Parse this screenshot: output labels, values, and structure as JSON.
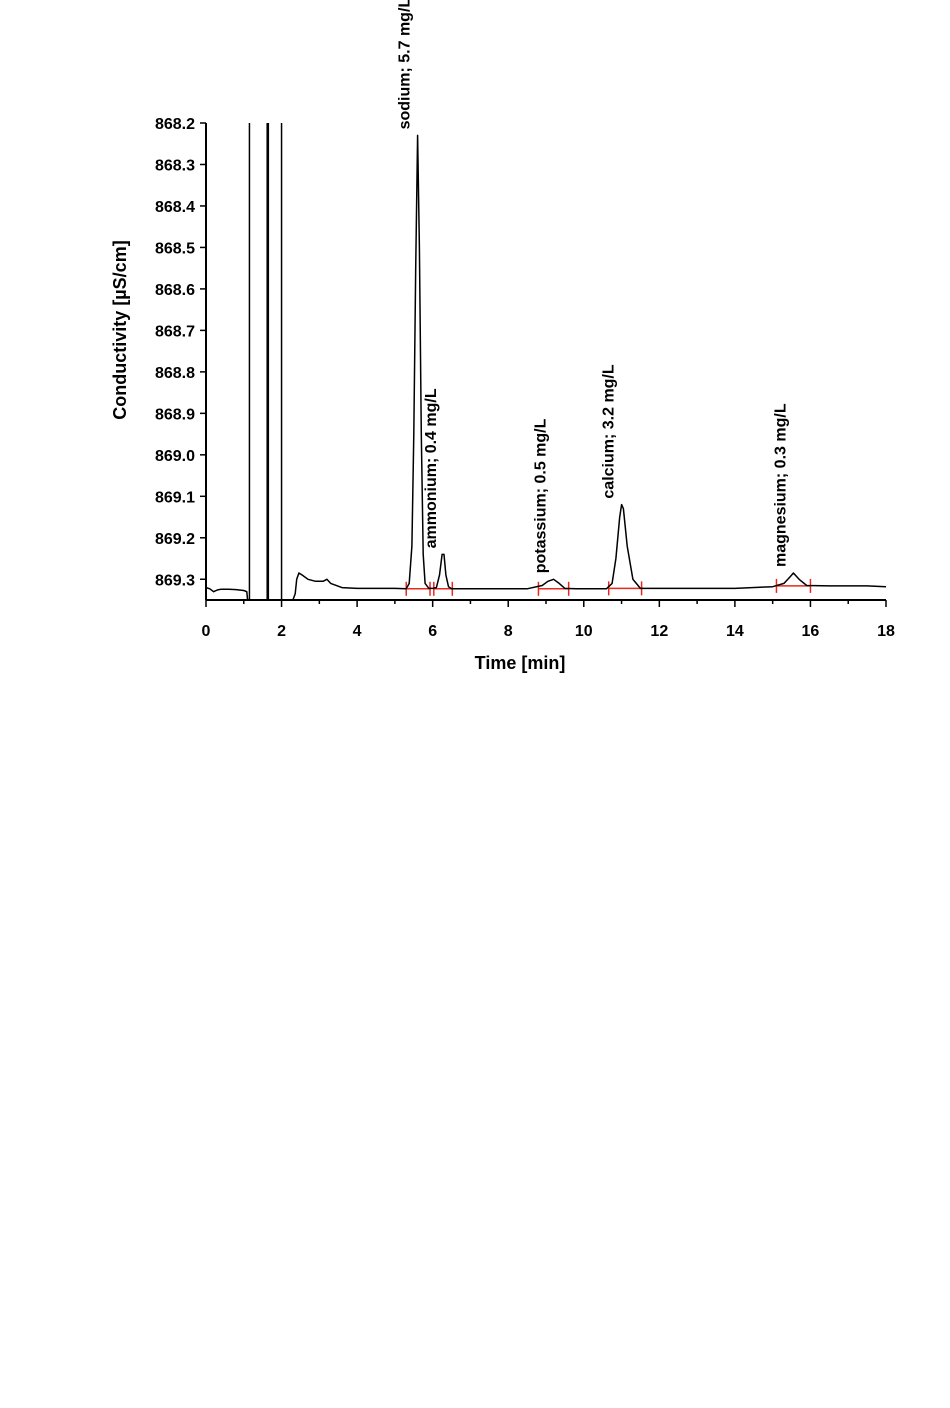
{
  "chart_data": {
    "type": "line",
    "xlabel": "Time [min]",
    "ylabel": "Conductivity [µS/cm]",
    "xlim": [
      0,
      18
    ],
    "ylim": [
      869.35,
      868.2
    ],
    "x_ticks": [
      "0",
      "2",
      "4",
      "6",
      "8",
      "10",
      "12",
      "14",
      "16",
      "18"
    ],
    "y_ticks": [
      "868.2",
      "868.3",
      "868.4",
      "868.5",
      "868.6",
      "868.7",
      "868.8",
      "868.9",
      "869.0",
      "869.1",
      "869.2",
      "869.3"
    ],
    "grid": false,
    "series": [
      {
        "x": [
          0,
          0.1,
          0.2,
          0.3,
          0.4,
          0.6,
          0.8,
          1.0,
          1.08,
          1.1,
          1.12,
          1.14,
          1.5,
          1.58,
          1.6,
          1.62,
          1.64,
          1.66,
          1.9,
          1.98,
          2.0,
          2.02,
          2.3,
          2.36,
          2.4,
          2.46,
          2.55,
          2.7,
          2.9,
          3.1,
          3.2,
          3.3,
          3.6,
          4.0,
          4.5,
          5.0,
          5.3,
          5.38,
          5.45,
          5.5,
          5.55,
          5.6,
          5.65,
          5.7,
          5.75,
          5.8,
          5.9,
          6.0,
          6.1,
          6.18,
          6.25,
          6.3,
          6.35,
          6.42,
          6.5,
          7.0,
          7.5,
          8.0,
          8.5,
          8.9,
          9.05,
          9.2,
          9.35,
          9.5,
          9.8,
          10.2,
          10.6,
          10.75,
          10.85,
          10.95,
          11.0,
          11.05,
          11.15,
          11.3,
          11.5,
          12.0,
          13.0,
          14.0,
          15.0,
          15.3,
          15.45,
          15.55,
          15.7,
          15.9,
          16.5,
          17.0,
          17.5,
          18.0
        ],
        "y": [
          869.32,
          869.323,
          869.33,
          869.326,
          869.324,
          869.324,
          869.325,
          869.327,
          869.33,
          869.35,
          869.35,
          869.35,
          869.35,
          869.35,
          869.35,
          869.35,
          869.35,
          869.35,
          869.35,
          869.35,
          869.35,
          869.35,
          869.35,
          869.335,
          869.3,
          869.285,
          869.29,
          869.3,
          869.305,
          869.305,
          869.3,
          869.31,
          869.32,
          869.322,
          869.322,
          869.322,
          869.323,
          869.31,
          869.22,
          868.95,
          868.55,
          868.23,
          868.5,
          868.95,
          869.24,
          869.31,
          869.322,
          869.322,
          869.32,
          869.29,
          869.24,
          869.24,
          869.29,
          869.318,
          869.323,
          869.323,
          869.323,
          869.323,
          869.323,
          869.315,
          869.305,
          869.3,
          869.31,
          869.322,
          869.323,
          869.323,
          869.323,
          869.31,
          869.25,
          869.15,
          869.12,
          869.13,
          869.22,
          869.3,
          869.322,
          869.322,
          869.322,
          869.322,
          869.318,
          869.31,
          869.295,
          869.285,
          869.3,
          869.315,
          869.316,
          869.316,
          869.316,
          869.318
        ]
      }
    ],
    "spikes": [
      {
        "x": 1.15,
        "y_top": 868.2,
        "y_bottom": 869.35
      },
      {
        "x": 1.62,
        "y_top": 868.2,
        "y_bottom": 869.35
      },
      {
        "x": 1.65,
        "y_top": 868.2,
        "y_bottom": 869.35
      },
      {
        "x": 2.0,
        "y_top": 868.2,
        "y_bottom": 869.35
      }
    ],
    "peaks": [
      {
        "label": "sodium; 5.7 mg/L",
        "apex_x": 5.6,
        "apex_y": 868.23,
        "start_x": 5.3,
        "end_x": 5.93,
        "baseline_y": 869.323
      },
      {
        "label": "ammonium; 0.4 mg/L",
        "apex_x": 6.3,
        "apex_y": 869.24,
        "start_x": 6.03,
        "end_x": 6.52,
        "baseline_y": 869.323
      },
      {
        "label": "potassium; 0.5 mg/L",
        "apex_x": 9.2,
        "apex_y": 869.3,
        "start_x": 8.8,
        "end_x": 9.6,
        "baseline_y": 869.323
      },
      {
        "label": "calcium; 3.2 mg/L",
        "apex_x": 11.0,
        "apex_y": 869.12,
        "start_x": 10.66,
        "end_x": 11.53,
        "baseline_y": 869.322
      },
      {
        "label": "magnesium; 0.3 mg/L",
        "apex_x": 15.55,
        "apex_y": 869.285,
        "start_x": 15.1,
        "end_x": 16.0,
        "baseline_y": 869.316
      }
    ],
    "colors": {
      "trace": "#000000",
      "integration": "#e8281e",
      "axis": "#000000"
    }
  }
}
